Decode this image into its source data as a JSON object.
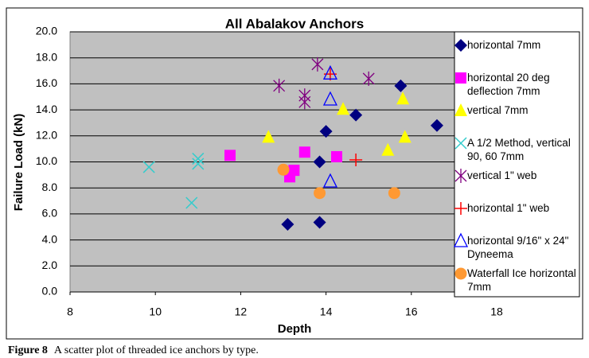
{
  "chart_data": {
    "type": "scatter",
    "title": "All Abalakov Anchors",
    "x_label": "Depth",
    "y_label": "Failure Load (kN)",
    "xlim": [
      8,
      18
    ],
    "xticks": [
      8,
      10,
      12,
      14,
      16,
      18
    ],
    "ylim": [
      0,
      20
    ],
    "yticks": [
      {
        "value": 0,
        "label": "0.0"
      },
      {
        "value": 2,
        "label": "2.0"
      },
      {
        "value": 4,
        "label": "4.0"
      },
      {
        "value": 6,
        "label": "6.0"
      },
      {
        "value": 8,
        "label": "8.0"
      },
      {
        "value": 10,
        "label": "10.0"
      },
      {
        "value": 12,
        "label": "12.0"
      },
      {
        "value": 14,
        "label": "14.0"
      },
      {
        "value": 16,
        "label": "16.0"
      },
      {
        "value": 18,
        "label": "18.0"
      },
      {
        "value": 20,
        "label": "20.0"
      }
    ],
    "grid": true,
    "legend": "right",
    "series": [
      {
        "name": "horizontal 7mm",
        "color": "#000080",
        "marker": "diamond",
        "x": [
          13.1,
          13.85,
          13.85,
          14.0,
          14.7,
          15.75,
          16.6
        ],
        "values": [
          5.2,
          5.35,
          10.0,
          12.35,
          13.6,
          15.85,
          12.8
        ]
      },
      {
        "name": "horizontal 20 deg deflection 7mm",
        "color": "#ff00ff",
        "marker": "square",
        "x": [
          11.75,
          13.15,
          13.25,
          13.5,
          14.25
        ],
        "values": [
          10.5,
          8.85,
          9.35,
          10.75,
          10.4
        ]
      },
      {
        "name": "vertical 7mm",
        "color": "#ffff00",
        "marker": "triangle",
        "x": [
          12.65,
          14.4,
          15.45,
          15.8,
          15.85
        ],
        "values": [
          11.9,
          14.05,
          10.9,
          14.85,
          11.9
        ]
      },
      {
        "name": "A 1/2 Method, vertical 90, 60 7mm",
        "color": "#33cccc",
        "marker": "x",
        "x": [
          9.85,
          10.85,
          11.0,
          11.0
        ],
        "values": [
          9.6,
          6.85,
          10.25,
          9.85
        ]
      },
      {
        "name": "vertical 1\" web",
        "color": "#800080",
        "marker": "asterisk",
        "x": [
          12.9,
          13.5,
          13.5,
          13.8,
          15.0
        ],
        "values": [
          15.85,
          15.1,
          14.6,
          17.5,
          16.4
        ]
      },
      {
        "name": "horizontal 1\" web",
        "color": "#ff0000",
        "marker": "plus",
        "x": [
          14.1,
          14.7
        ],
        "values": [
          16.75,
          10.15
        ]
      },
      {
        "name": "horizontal 9/16\" x 24\" Dyneema",
        "color": "#0000ff",
        "marker": "open-triangle",
        "x": [
          14.1,
          14.1,
          14.1
        ],
        "values": [
          16.8,
          14.8,
          8.5
        ]
      },
      {
        "name": "Waterfall Ice horizontal 7mm",
        "color": "#ff9933",
        "marker": "circle",
        "x": [
          13.0,
          13.85,
          15.6
        ],
        "values": [
          9.4,
          7.6,
          7.6
        ]
      }
    ]
  },
  "caption": {
    "label": "Figure 8",
    "text": "A scatter plot of threaded ice anchors by type."
  }
}
